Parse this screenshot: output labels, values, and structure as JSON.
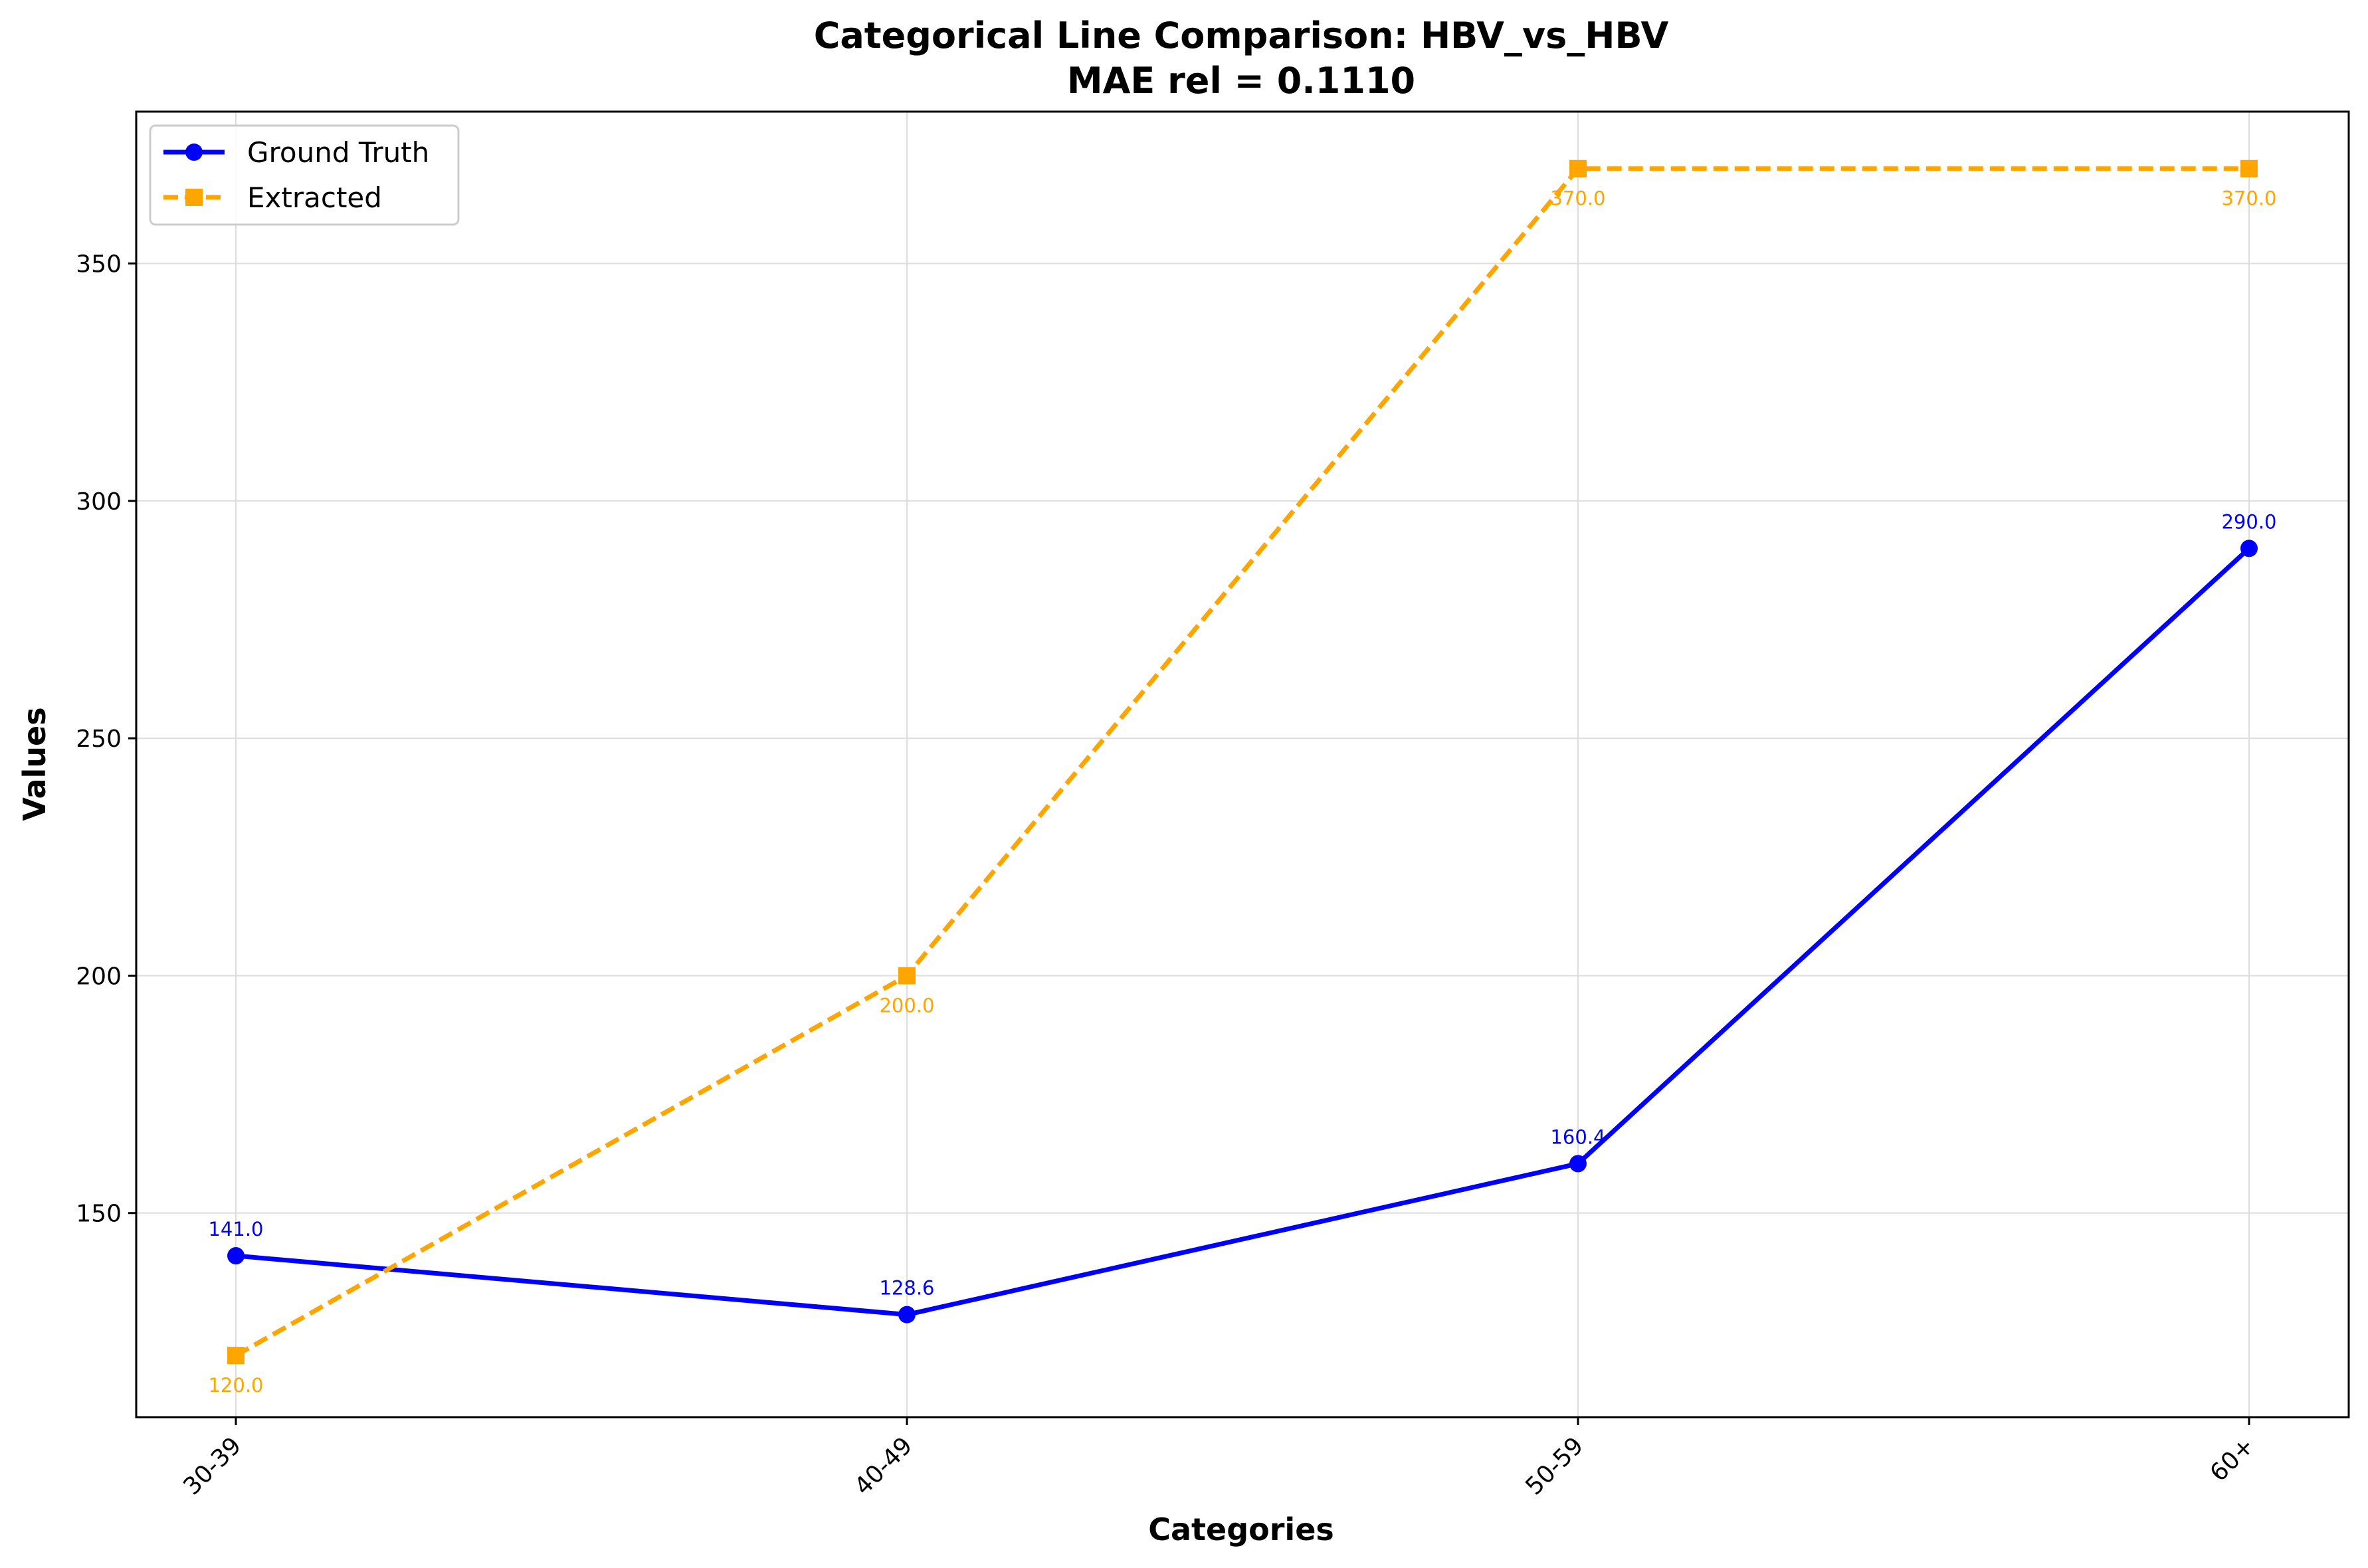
{
  "chart_data": {
    "type": "line",
    "title": "Categorical Line Comparison: HBV_vs_HBV",
    "subtitle": "MAE rel = 0.1110",
    "xlabel": "Categories",
    "ylabel": "Values",
    "categories": [
      "30-39",
      "40-49",
      "50-59",
      "60+"
    ],
    "ylim": [
      107,
      382
    ],
    "yticks": [
      150,
      200,
      250,
      300,
      350
    ],
    "grid": true,
    "legend_position": "top-left",
    "series": [
      {
        "name": "Ground Truth",
        "color": "#0000ff",
        "line_style": "solid",
        "marker": "circle",
        "values": [
          141.0,
          128.6,
          160.4,
          290.0
        ],
        "labels": [
          "141.0",
          "128.6",
          "160.4",
          "290.0"
        ],
        "label_position": "above"
      },
      {
        "name": "Extracted",
        "color": "#ffa500",
        "line_style": "dashed",
        "marker": "square",
        "values": [
          120.0,
          200.0,
          370.0,
          370.0
        ],
        "labels": [
          "120.0",
          "200.0",
          "370.0",
          "370.0"
        ],
        "label_position": "below"
      }
    ]
  }
}
